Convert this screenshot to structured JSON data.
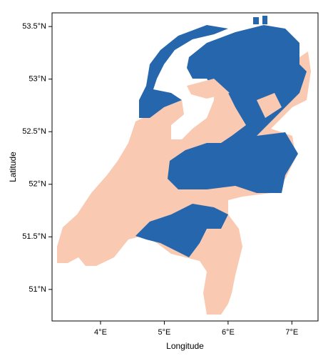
{
  "chart_data": {
    "type": "map",
    "xlabel": "Longitude",
    "ylabel": "Latitude",
    "xlim": [
      3.24,
      7.41
    ],
    "ylim": [
      50.7,
      53.63
    ],
    "xticks": [
      {
        "value": 4,
        "label": "4°E"
      },
      {
        "value": 5,
        "label": "5°E"
      },
      {
        "value": 6,
        "label": "6°E"
      },
      {
        "value": 7,
        "label": "7°E"
      }
    ],
    "yticks": [
      {
        "value": 51,
        "label": "51°N"
      },
      {
        "value": 51.5,
        "label": "51.5°N"
      },
      {
        "value": 52,
        "label": "52°N"
      },
      {
        "value": 52.5,
        "label": "52.5°N"
      },
      {
        "value": 53,
        "label": "53°N"
      },
      {
        "value": 53.5,
        "label": "53.5°N"
      }
    ]
  }
}
